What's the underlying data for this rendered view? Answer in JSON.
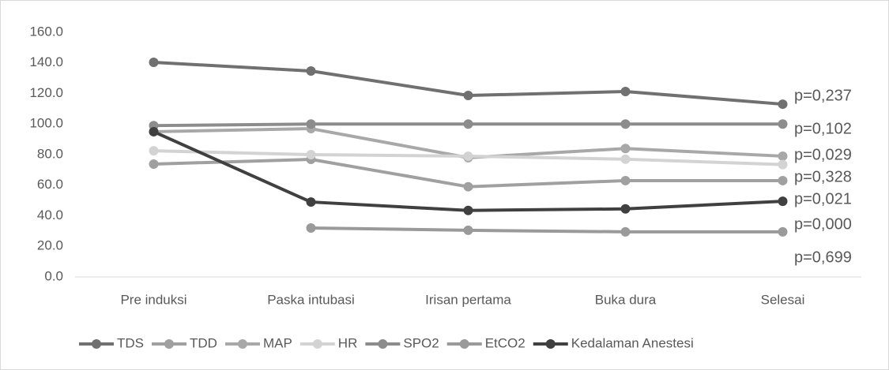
{
  "chart_data": {
    "type": "line",
    "categories": [
      "Pre induksi",
      "Paska intubasi",
      "Irisan pertama",
      "Buka dura",
      "Selesai"
    ],
    "series": [
      {
        "name": "TDS",
        "color": "#707070",
        "values": [
          140.4,
          134.7,
          118.7,
          121.3,
          113.0
        ]
      },
      {
        "name": "TDD",
        "color": "#a0a0a0",
        "values": [
          73.8,
          76.9,
          59.0,
          63.0,
          63.0
        ]
      },
      {
        "name": "MAP",
        "color": "#a8a8a8",
        "values": [
          95.0,
          97.0,
          78.0,
          84.0,
          79.0
        ]
      },
      {
        "name": "HR",
        "color": "#d3d3d3",
        "values": [
          82.5,
          80.0,
          79.0,
          77.0,
          73.5
        ]
      },
      {
        "name": "SPO2",
        "color": "#8c8c8c",
        "values": [
          99.0,
          100.0,
          100.0,
          100.0,
          100.0
        ]
      },
      {
        "name": "EtCO2",
        "color": "#9a9a9a",
        "values": [
          null,
          32.0,
          30.5,
          29.5,
          29.5
        ]
      },
      {
        "name": "Kedalaman Anestesi",
        "color": "#404040",
        "values": [
          95.0,
          49.0,
          43.5,
          44.5,
          49.5
        ]
      }
    ],
    "annotations": [
      {
        "text": "p=0,237",
        "color": "#595959"
      },
      {
        "text": "p=0,102",
        "color": "#a6a6a6"
      },
      {
        "text": "p=0,029",
        "color": "#a6a6a6"
      },
      {
        "text": "p=0,328",
        "color": "#404040"
      },
      {
        "text": "p=0,021",
        "color": "#a6a6a6"
      },
      {
        "text": "p=0,000",
        "color": "#000000"
      },
      {
        "text": "p=0,699",
        "color": "#a6a6a6"
      }
    ],
    "ylim": [
      0,
      160
    ],
    "yticks": [
      {
        "value": 0,
        "label": "0.0"
      },
      {
        "value": 20,
        "label": "20.0"
      },
      {
        "value": 40,
        "label": "40.0"
      },
      {
        "value": 60,
        "label": "60.0"
      },
      {
        "value": 80,
        "label": "80.0"
      },
      {
        "value": 100,
        "label": "100.0"
      },
      {
        "value": 120,
        "label": "120.0"
      },
      {
        "value": 140,
        "label": "140.0"
      },
      {
        "value": 160,
        "label": "160.0"
      }
    ],
    "grid": false,
    "legend": "bottom"
  }
}
